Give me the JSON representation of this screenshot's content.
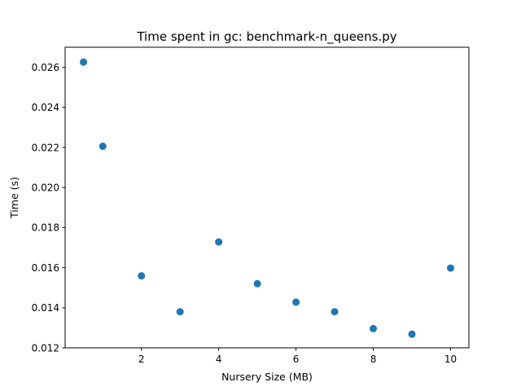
{
  "chart_data": {
    "type": "scatter",
    "title": "Time spent in gc: benchmark-n_queens.py",
    "xlabel": "Nursery Size (MB)",
    "ylabel": "Time (s)",
    "xlim": [
      0.025,
      10.475
    ],
    "ylim": [
      0.012,
      0.027
    ],
    "xticks": [
      2,
      4,
      6,
      8,
      10
    ],
    "xtick_labels": [
      "2",
      "4",
      "6",
      "8",
      "10"
    ],
    "yticks": [
      0.012,
      0.014,
      0.016,
      0.018,
      0.02,
      0.022,
      0.024,
      0.026
    ],
    "ytick_labels": [
      "0.012",
      "0.014",
      "0.016",
      "0.018",
      "0.020",
      "0.022",
      "0.024",
      "0.026"
    ],
    "grid": false,
    "marker_color": "#1f77b4",
    "points": [
      {
        "x": 0.5,
        "y": 0.02626
      },
      {
        "x": 1,
        "y": 0.02206
      },
      {
        "x": 2,
        "y": 0.01559
      },
      {
        "x": 3,
        "y": 0.0138
      },
      {
        "x": 4,
        "y": 0.01728
      },
      {
        "x": 5,
        "y": 0.0152
      },
      {
        "x": 6,
        "y": 0.01428
      },
      {
        "x": 7,
        "y": 0.0138
      },
      {
        "x": 8,
        "y": 0.01296
      },
      {
        "x": 9,
        "y": 0.01268
      },
      {
        "x": 10,
        "y": 0.01598
      }
    ]
  }
}
